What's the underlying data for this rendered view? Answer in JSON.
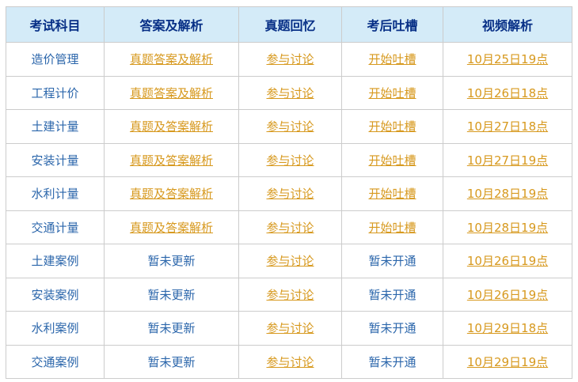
{
  "colors": {
    "header_bg": "#d4ebf8",
    "header_text": "#072f86",
    "cell_text": "#2b66ab",
    "link_text": "#d7991e",
    "border_color": "#cccccc",
    "page_bg": "#ffffff"
  },
  "table": {
    "columns": [
      "考试科目",
      "答案及解析",
      "真题回忆",
      "考后吐槽",
      "视频解析"
    ],
    "rows": [
      {
        "subject": "造价管理",
        "cells": [
          {
            "text": "真题答案及解析",
            "link": true
          },
          {
            "text": "参与讨论",
            "link": true
          },
          {
            "text": "开始吐槽",
            "link": true
          },
          {
            "text": "10月25日19点",
            "link": true
          }
        ]
      },
      {
        "subject": "工程计价",
        "cells": [
          {
            "text": "真题答案及解析",
            "link": true
          },
          {
            "text": "参与讨论",
            "link": true
          },
          {
            "text": "开始吐槽",
            "link": true
          },
          {
            "text": "10月26日18点",
            "link": true
          }
        ]
      },
      {
        "subject": "土建计量",
        "cells": [
          {
            "text": "真题及答案解析",
            "link": true
          },
          {
            "text": "参与讨论",
            "link": true
          },
          {
            "text": "开始吐槽",
            "link": true
          },
          {
            "text": "10月27日18点",
            "link": true
          }
        ]
      },
      {
        "subject": "安装计量",
        "cells": [
          {
            "text": "真题及答案解析",
            "link": true
          },
          {
            "text": "参与讨论",
            "link": true
          },
          {
            "text": "开始吐槽",
            "link": true
          },
          {
            "text": "10月27日19点",
            "link": true
          }
        ]
      },
      {
        "subject": "水利计量",
        "cells": [
          {
            "text": "真题及答案解析",
            "link": true
          },
          {
            "text": "参与讨论",
            "link": true
          },
          {
            "text": "开始吐槽",
            "link": true
          },
          {
            "text": "10月28日19点",
            "link": true
          }
        ]
      },
      {
        "subject": "交通计量",
        "cells": [
          {
            "text": "真题及答案解析",
            "link": true
          },
          {
            "text": "参与讨论",
            "link": true
          },
          {
            "text": "开始吐槽",
            "link": true
          },
          {
            "text": "10月28日19点",
            "link": true
          }
        ]
      },
      {
        "subject": "土建案例",
        "cells": [
          {
            "text": "暂未更新",
            "link": false
          },
          {
            "text": "参与讨论",
            "link": true
          },
          {
            "text": "暂未开通",
            "link": false
          },
          {
            "text": "10月26日19点",
            "link": true
          }
        ]
      },
      {
        "subject": "安装案例",
        "cells": [
          {
            "text": "暂未更新",
            "link": false
          },
          {
            "text": "参与讨论",
            "link": true
          },
          {
            "text": "暂未开通",
            "link": false
          },
          {
            "text": "10月26日19点",
            "link": true
          }
        ]
      },
      {
        "subject": "水利案例",
        "cells": [
          {
            "text": "暂未更新",
            "link": false
          },
          {
            "text": "参与讨论",
            "link": true
          },
          {
            "text": "暂未开通",
            "link": false
          },
          {
            "text": "10月29日18点",
            "link": true
          }
        ]
      },
      {
        "subject": "交通案例",
        "cells": [
          {
            "text": "暂未更新",
            "link": false
          },
          {
            "text": "参与讨论",
            "link": true
          },
          {
            "text": "暂未开通",
            "link": false
          },
          {
            "text": "10月29日19点",
            "link": true
          }
        ]
      }
    ]
  }
}
